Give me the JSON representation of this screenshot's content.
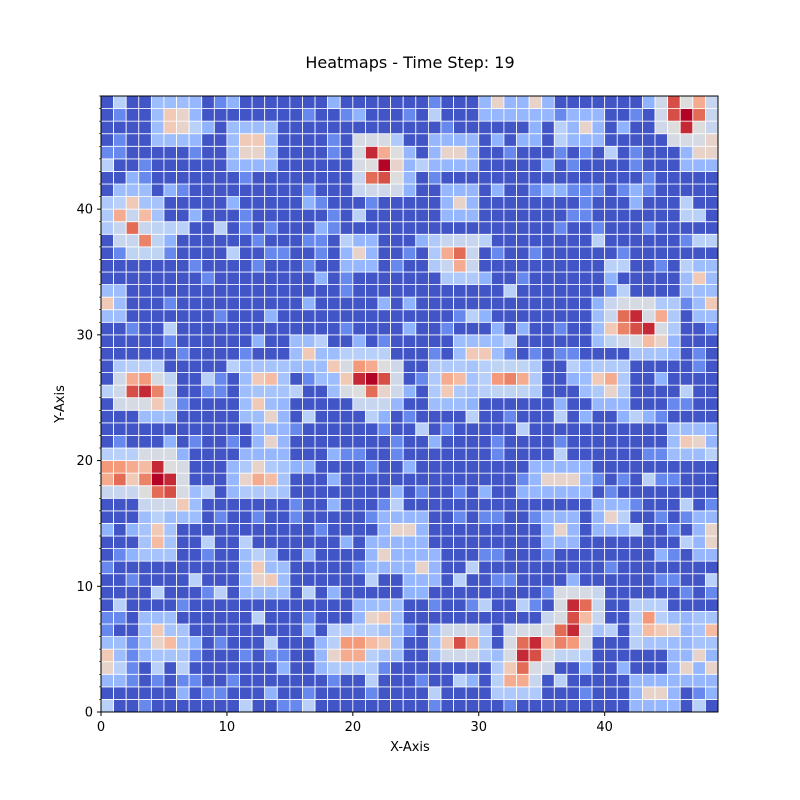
{
  "chart_data": {
    "type": "heatmap",
    "title": "Heatmaps - Time Step: 19",
    "xlabel": "X-Axis",
    "ylabel": "Y-Axis",
    "xlim": [
      0,
      49
    ],
    "ylim": [
      0,
      49
    ],
    "x_ticks": [
      0,
      10,
      20,
      30,
      40
    ],
    "y_ticks": [
      0,
      10,
      20,
      30,
      40
    ],
    "colormap": "coolwarm",
    "cell_edge_color": "#ffffff",
    "n_cols": 49,
    "n_rows": 49,
    "hotspots": [
      {
        "x": 46,
        "y": 47,
        "v": 1.0
      },
      {
        "x": 45,
        "y": 48,
        "v": 0.9
      },
      {
        "x": 47,
        "y": 47,
        "v": 0.85
      },
      {
        "x": 45,
        "y": 47,
        "v": 0.9
      },
      {
        "x": 46,
        "y": 46,
        "v": 0.95
      },
      {
        "x": 47,
        "y": 48,
        "v": 0.7
      },
      {
        "x": 22,
        "y": 43,
        "v": 1.0
      },
      {
        "x": 21,
        "y": 44,
        "v": 0.95
      },
      {
        "x": 22,
        "y": 42,
        "v": 0.9
      },
      {
        "x": 21,
        "y": 42,
        "v": 0.85
      },
      {
        "x": 22,
        "y": 44,
        "v": 0.7
      },
      {
        "x": 23,
        "y": 43,
        "v": 0.55
      },
      {
        "x": 2,
        "y": 38,
        "v": 0.85
      },
      {
        "x": 3,
        "y": 37,
        "v": 0.8
      },
      {
        "x": 1,
        "y": 39,
        "v": 0.7
      },
      {
        "x": 3,
        "y": 39,
        "v": 0.65
      },
      {
        "x": 2,
        "y": 40,
        "v": 0.6
      },
      {
        "x": 5,
        "y": 46,
        "v": 0.6
      },
      {
        "x": 6,
        "y": 46,
        "v": 0.55
      },
      {
        "x": 5,
        "y": 47,
        "v": 0.6
      },
      {
        "x": 6,
        "y": 47,
        "v": 0.55
      },
      {
        "x": 11,
        "y": 45,
        "v": 0.6
      },
      {
        "x": 12,
        "y": 45,
        "v": 0.6
      },
      {
        "x": 11,
        "y": 44,
        "v": 0.55
      },
      {
        "x": 12,
        "y": 44,
        "v": 0.55
      },
      {
        "x": 28,
        "y": 36,
        "v": 0.85
      },
      {
        "x": 27,
        "y": 36,
        "v": 0.7
      },
      {
        "x": 28,
        "y": 35,
        "v": 0.7
      },
      {
        "x": 42,
        "y": 31,
        "v": 0.95
      },
      {
        "x": 43,
        "y": 30,
        "v": 0.95
      },
      {
        "x": 41,
        "y": 31,
        "v": 0.85
      },
      {
        "x": 42,
        "y": 30,
        "v": 0.9
      },
      {
        "x": 41,
        "y": 30,
        "v": 0.8
      },
      {
        "x": 44,
        "y": 31,
        "v": 0.7
      },
      {
        "x": 43,
        "y": 29,
        "v": 0.65
      },
      {
        "x": 40,
        "y": 30,
        "v": 0.6
      },
      {
        "x": 44,
        "y": 29,
        "v": 0.55
      },
      {
        "x": 3,
        "y": 25,
        "v": 0.95
      },
      {
        "x": 2,
        "y": 25,
        "v": 0.9
      },
      {
        "x": 4,
        "y": 25,
        "v": 0.8
      },
      {
        "x": 3,
        "y": 26,
        "v": 0.75
      },
      {
        "x": 2,
        "y": 26,
        "v": 0.7
      },
      {
        "x": 4,
        "y": 24,
        "v": 0.6
      },
      {
        "x": 21,
        "y": 26,
        "v": 1.0
      },
      {
        "x": 20,
        "y": 26,
        "v": 0.95
      },
      {
        "x": 22,
        "y": 26,
        "v": 0.9
      },
      {
        "x": 21,
        "y": 25,
        "v": 0.85
      },
      {
        "x": 20,
        "y": 27,
        "v": 0.75
      },
      {
        "x": 21,
        "y": 27,
        "v": 0.7
      },
      {
        "x": 19,
        "y": 26,
        "v": 0.6
      },
      {
        "x": 22,
        "y": 25,
        "v": 0.55
      },
      {
        "x": 32,
        "y": 26,
        "v": 0.8
      },
      {
        "x": 31,
        "y": 26,
        "v": 0.75
      },
      {
        "x": 33,
        "y": 26,
        "v": 0.7
      },
      {
        "x": 27,
        "y": 26,
        "v": 0.7
      },
      {
        "x": 28,
        "y": 26,
        "v": 0.65
      },
      {
        "x": 27,
        "y": 25,
        "v": 0.6
      },
      {
        "x": 40,
        "y": 26,
        "v": 0.7
      },
      {
        "x": 39,
        "y": 26,
        "v": 0.6
      },
      {
        "x": 40,
        "y": 25,
        "v": 0.55
      },
      {
        "x": 13,
        "y": 26,
        "v": 0.65
      },
      {
        "x": 12,
        "y": 26,
        "v": 0.6
      },
      {
        "x": 12,
        "y": 24,
        "v": 0.6
      },
      {
        "x": 13,
        "y": 23,
        "v": 0.55
      },
      {
        "x": 13,
        "y": 21,
        "v": 0.55
      },
      {
        "x": 4,
        "y": 18,
        "v": 1.0
      },
      {
        "x": 5,
        "y": 18,
        "v": 0.95
      },
      {
        "x": 4,
        "y": 19,
        "v": 0.95
      },
      {
        "x": 5,
        "y": 17,
        "v": 0.9
      },
      {
        "x": 3,
        "y": 18,
        "v": 0.8
      },
      {
        "x": 2,
        "y": 19,
        "v": 0.7
      },
      {
        "x": 1,
        "y": 19,
        "v": 0.75
      },
      {
        "x": 0,
        "y": 19,
        "v": 0.75
      },
      {
        "x": 0,
        "y": 18,
        "v": 0.7
      },
      {
        "x": 1,
        "y": 18,
        "v": 0.85
      },
      {
        "x": 2,
        "y": 18,
        "v": 0.6
      },
      {
        "x": 3,
        "y": 19,
        "v": 0.65
      },
      {
        "x": 4,
        "y": 17,
        "v": 0.85
      },
      {
        "x": 6,
        "y": 16,
        "v": 0.6
      },
      {
        "x": 4,
        "y": 14,
        "v": 0.6
      },
      {
        "x": 13,
        "y": 18,
        "v": 0.65
      },
      {
        "x": 12,
        "y": 18,
        "v": 0.7
      },
      {
        "x": 11,
        "y": 18,
        "v": 0.55
      },
      {
        "x": 12,
        "y": 19,
        "v": 0.55
      },
      {
        "x": 4,
        "y": 13,
        "v": 0.65
      },
      {
        "x": 12,
        "y": 10,
        "v": 0.55
      },
      {
        "x": 13,
        "y": 10,
        "v": 0.6
      },
      {
        "x": 12,
        "y": 11,
        "v": 0.6
      },
      {
        "x": 37,
        "y": 8,
        "v": 0.95
      },
      {
        "x": 38,
        "y": 8,
        "v": 0.85
      },
      {
        "x": 37,
        "y": 7,
        "v": 0.9
      },
      {
        "x": 37,
        "y": 6,
        "v": 0.95
      },
      {
        "x": 36,
        "y": 6,
        "v": 0.85
      },
      {
        "x": 36,
        "y": 5,
        "v": 0.8
      },
      {
        "x": 37,
        "y": 5,
        "v": 0.75
      },
      {
        "x": 38,
        "y": 7,
        "v": 0.65
      },
      {
        "x": 34,
        "y": 5,
        "v": 0.95
      },
      {
        "x": 33,
        "y": 4,
        "v": 0.95
      },
      {
        "x": 34,
        "y": 4,
        "v": 0.9
      },
      {
        "x": 33,
        "y": 5,
        "v": 0.85
      },
      {
        "x": 33,
        "y": 3,
        "v": 0.85
      },
      {
        "x": 32,
        "y": 2,
        "v": 0.7
      },
      {
        "x": 33,
        "y": 2,
        "v": 0.7
      },
      {
        "x": 35,
        "y": 5,
        "v": 0.65
      },
      {
        "x": 32,
        "y": 3,
        "v": 0.6
      },
      {
        "x": 28,
        "y": 5,
        "v": 0.9
      },
      {
        "x": 29,
        "y": 5,
        "v": 0.7
      },
      {
        "x": 27,
        "y": 5,
        "v": 0.6
      },
      {
        "x": 20,
        "y": 5,
        "v": 0.75
      },
      {
        "x": 19,
        "y": 5,
        "v": 0.75
      },
      {
        "x": 19,
        "y": 4,
        "v": 0.7
      },
      {
        "x": 20,
        "y": 4,
        "v": 0.7
      },
      {
        "x": 21,
        "y": 5,
        "v": 0.65
      },
      {
        "x": 22,
        "y": 5,
        "v": 0.6
      },
      {
        "x": 21,
        "y": 7,
        "v": 0.55
      },
      {
        "x": 22,
        "y": 7,
        "v": 0.6
      },
      {
        "x": 18,
        "y": 4,
        "v": 0.55
      },
      {
        "x": 43,
        "y": 7,
        "v": 0.75
      },
      {
        "x": 43,
        "y": 6,
        "v": 0.65
      },
      {
        "x": 44,
        "y": 6,
        "v": 0.6
      },
      {
        "x": 45,
        "y": 6,
        "v": 0.55
      },
      {
        "x": 48,
        "y": 6,
        "v": 0.65
      },
      {
        "x": 47,
        "y": 4,
        "v": 0.55
      },
      {
        "x": 48,
        "y": 3,
        "v": 0.55
      },
      {
        "x": 46,
        "y": 3,
        "v": 0.55
      },
      {
        "x": 0,
        "y": 4,
        "v": 0.6
      },
      {
        "x": 0,
        "y": 3,
        "v": 0.55
      },
      {
        "x": 4,
        "y": 6,
        "v": 0.6
      },
      {
        "x": 5,
        "y": 5,
        "v": 0.65
      },
      {
        "x": 4,
        "y": 5,
        "v": 0.55
      },
      {
        "x": 48,
        "y": 32,
        "v": 0.6
      },
      {
        "x": 47,
        "y": 34,
        "v": 0.6
      },
      {
        "x": 0,
        "y": 32,
        "v": 0.6
      },
      {
        "x": 46,
        "y": 21,
        "v": 0.6
      },
      {
        "x": 47,
        "y": 21,
        "v": 0.55
      },
      {
        "x": 48,
        "y": 14,
        "v": 0.55
      },
      {
        "x": 48,
        "y": 13,
        "v": 0.55
      },
      {
        "x": 40,
        "y": 15,
        "v": 0.55
      },
      {
        "x": 37,
        "y": 18,
        "v": 0.55
      },
      {
        "x": 36,
        "y": 18,
        "v": 0.55
      },
      {
        "x": 35,
        "y": 18,
        "v": 0.55
      },
      {
        "x": 23,
        "y": 14,
        "v": 0.55
      },
      {
        "x": 24,
        "y": 14,
        "v": 0.55
      },
      {
        "x": 22,
        "y": 12,
        "v": 0.55
      },
      {
        "x": 25,
        "y": 11,
        "v": 0.55
      },
      {
        "x": 36,
        "y": 14,
        "v": 0.55
      },
      {
        "x": 44,
        "y": 1,
        "v": 0.55
      },
      {
        "x": 43,
        "y": 1,
        "v": 0.55
      },
      {
        "x": 31,
        "y": 48,
        "v": 0.55
      },
      {
        "x": 34,
        "y": 48,
        "v": 0.55
      },
      {
        "x": 38,
        "y": 46,
        "v": 0.55
      },
      {
        "x": 27,
        "y": 44,
        "v": 0.55
      },
      {
        "x": 28,
        "y": 44,
        "v": 0.55
      },
      {
        "x": 28,
        "y": 40,
        "v": 0.55
      },
      {
        "x": 20,
        "y": 36,
        "v": 0.55
      },
      {
        "x": 48,
        "y": 45,
        "v": 0.55
      },
      {
        "x": 47,
        "y": 44,
        "v": 0.55
      },
      {
        "x": 48,
        "y": 44,
        "v": 0.55
      },
      {
        "x": 30,
        "y": 28,
        "v": 0.6
      },
      {
        "x": 29,
        "y": 28,
        "v": 0.6
      },
      {
        "x": 16,
        "y": 28,
        "v": 0.6
      },
      {
        "x": 18,
        "y": 27,
        "v": 0.6
      }
    ]
  }
}
